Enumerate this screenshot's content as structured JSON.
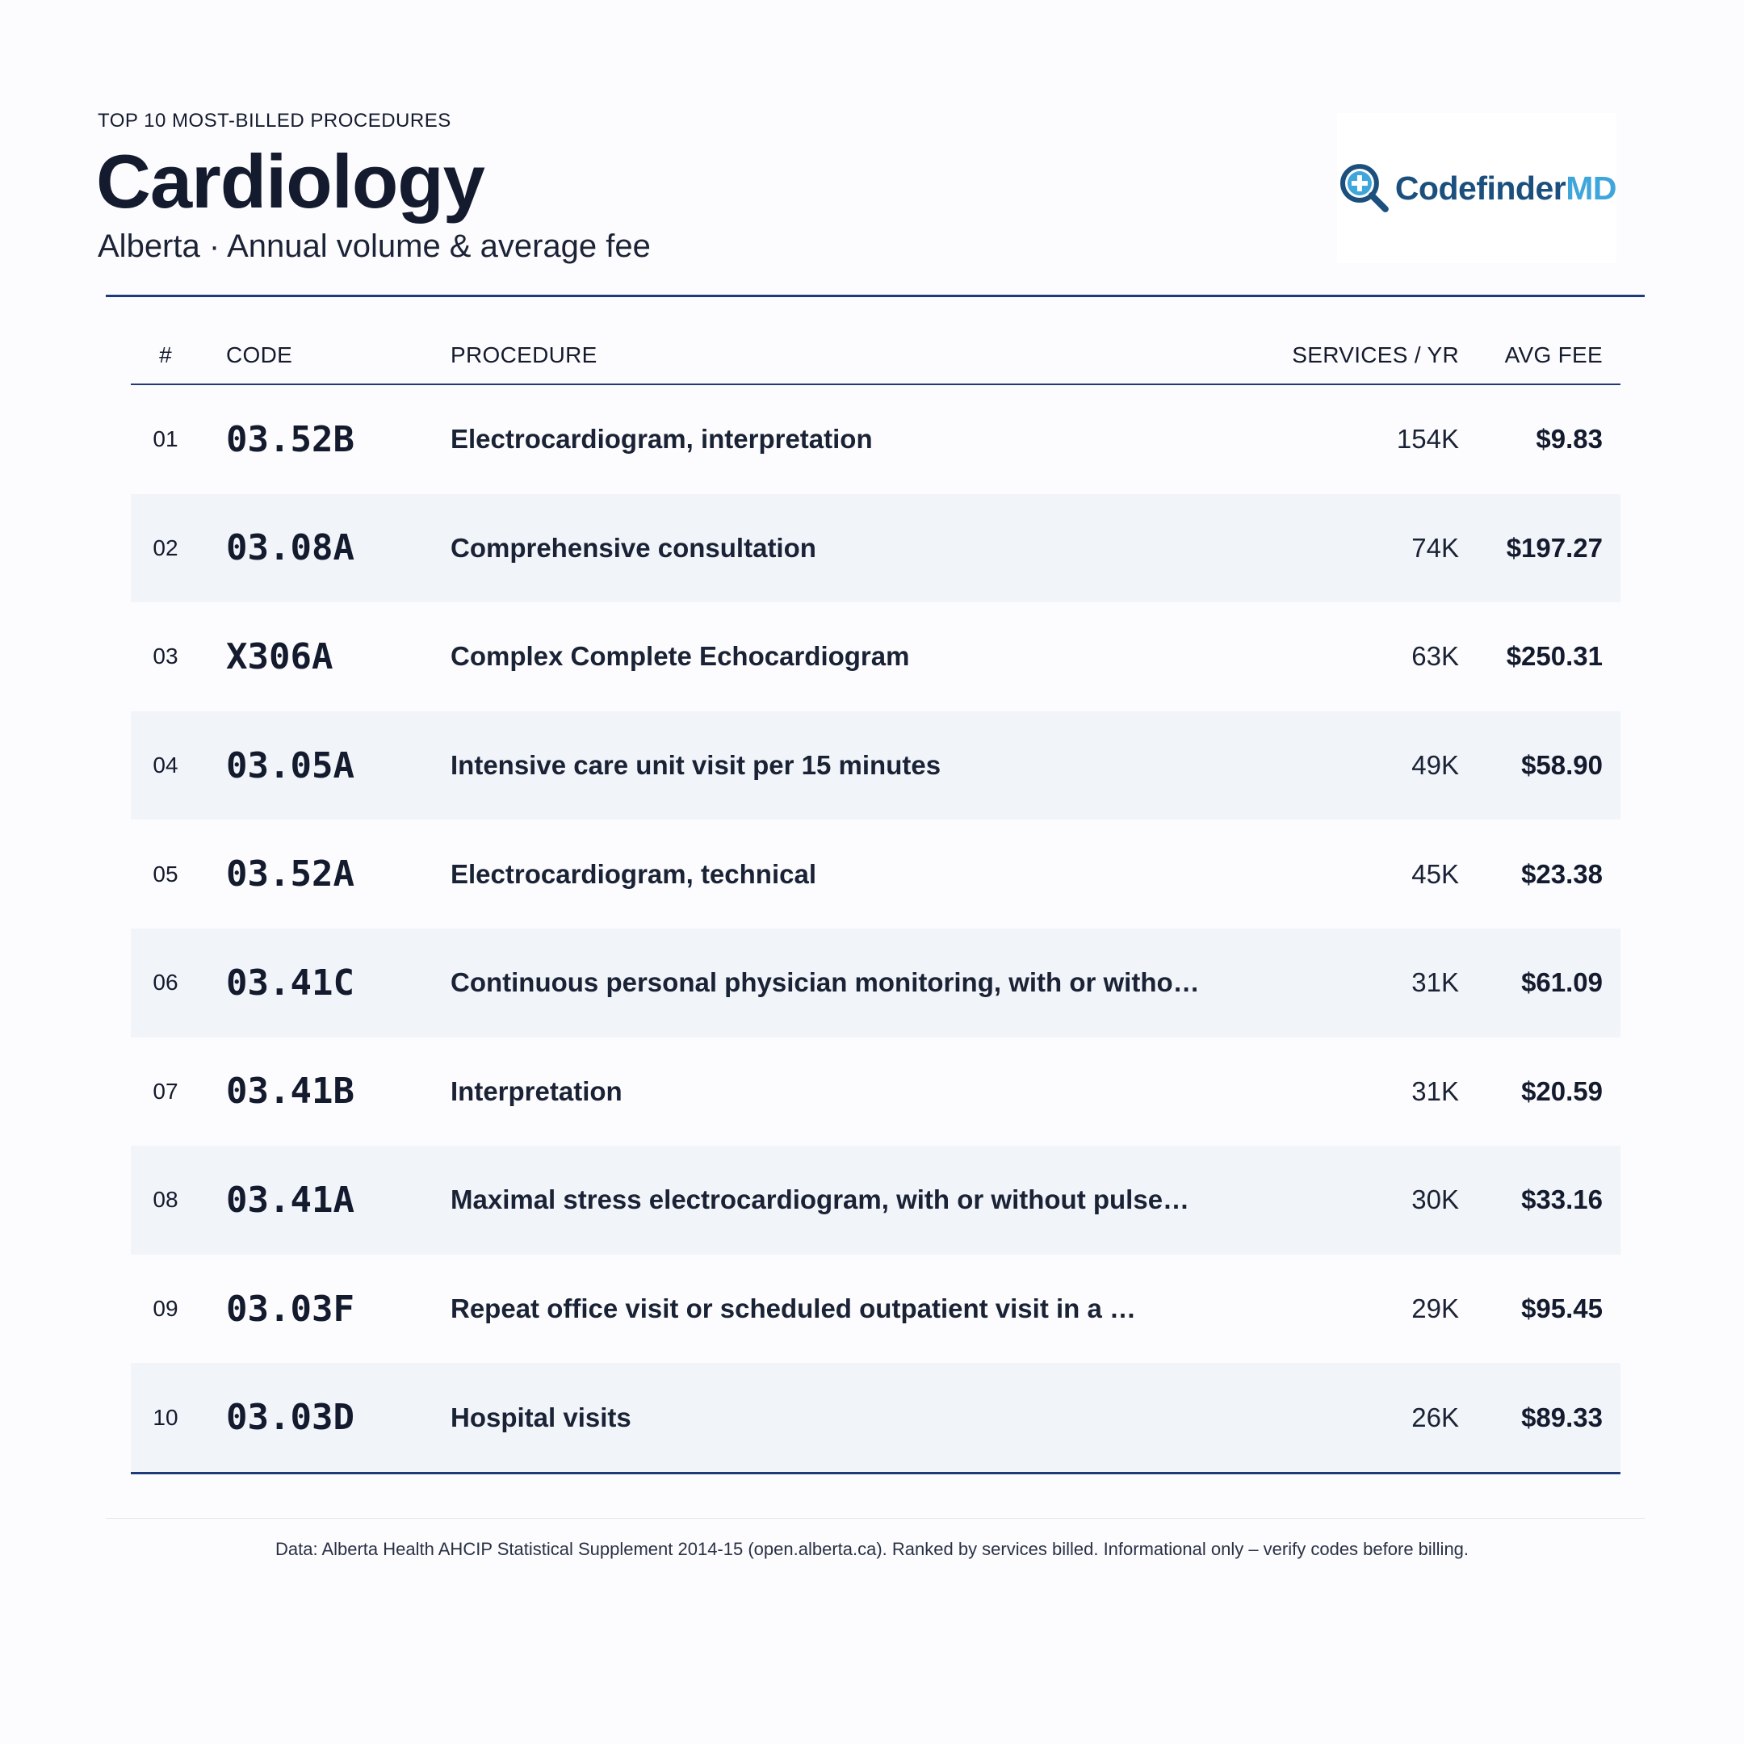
{
  "header": {
    "eyebrow": "TOP 10 MOST-BILLED PROCEDURES",
    "title": "Cardiology",
    "subtitle": "Alberta · Annual volume & average fee"
  },
  "logo": {
    "icon": "magnifier-plus-icon",
    "text_primary": "Codefinder",
    "text_accent": "MD",
    "colors": {
      "primary": "#1b4f7d",
      "accent": "#3fa6db"
    }
  },
  "table": {
    "columns": {
      "num": "#",
      "code": "CODE",
      "procedure": "PROCEDURE",
      "services": "SERVICES / YR",
      "fee": "AVG FEE"
    },
    "rows": [
      {
        "num": "01",
        "code": "03.52B",
        "procedure": "Electrocardiogram, interpretation",
        "services": "154K",
        "fee": "$9.83"
      },
      {
        "num": "02",
        "code": "03.08A",
        "procedure": "Comprehensive consultation",
        "services": "74K",
        "fee": "$197.27"
      },
      {
        "num": "03",
        "code": "X306A",
        "procedure": "Complex Complete Echocardiogram",
        "services": "63K",
        "fee": "$250.31"
      },
      {
        "num": "04",
        "code": "03.05A",
        "procedure": "Intensive care unit visit per 15 minutes",
        "services": "49K",
        "fee": "$58.90"
      },
      {
        "num": "05",
        "code": "03.52A",
        "procedure": "Electrocardiogram, technical",
        "services": "45K",
        "fee": "$23.38"
      },
      {
        "num": "06",
        "code": "03.41C",
        "procedure": "Continuous personal physician monitoring, with or witho…",
        "services": "31K",
        "fee": "$61.09"
      },
      {
        "num": "07",
        "code": "03.41B",
        "procedure": "Interpretation",
        "services": "31K",
        "fee": "$20.59"
      },
      {
        "num": "08",
        "code": "03.41A",
        "procedure": "Maximal stress electrocardiogram, with or without pulse…",
        "services": "30K",
        "fee": "$33.16"
      },
      {
        "num": "09",
        "code": "03.03F",
        "procedure": "Repeat office visit or scheduled outpatient visit in a …",
        "services": "29K",
        "fee": "$95.45"
      },
      {
        "num": "10",
        "code": "03.03D",
        "procedure": "Hospital visits",
        "services": "26K",
        "fee": "$89.33"
      }
    ]
  },
  "footer": {
    "text": "Data: Alberta Health AHCIP Statistical Supplement 2014-15 (open.alberta.ca). Ranked by services billed. Informational only – verify codes before billing."
  },
  "colors": {
    "rule": "#1f3a7a",
    "row_alt": "#f1f4f9",
    "text": "#141b2e"
  }
}
